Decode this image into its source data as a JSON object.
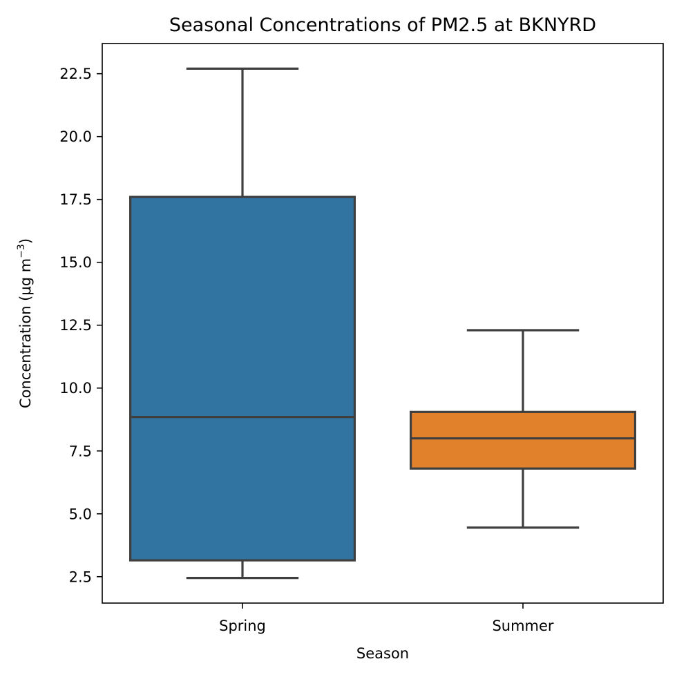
{
  "chart_data": {
    "type": "box",
    "title": "Seasonal Concentrations of PM2.5 at BKNYRD",
    "xlabel": "Season",
    "ylabel": "Concentration (μg m",
    "ylabel_sup": "−3",
    "ylabel_close": ")",
    "ylim": [
      1.45,
      23.7
    ],
    "yticks": [
      2.5,
      5.0,
      7.5,
      10.0,
      12.5,
      15.0,
      17.5,
      20.0,
      22.5
    ],
    "ytick_labels": [
      "2.5",
      "5.0",
      "7.5",
      "10.0",
      "12.5",
      "15.0",
      "17.5",
      "20.0",
      "22.5"
    ],
    "categories": [
      "Spring",
      "Summer"
    ],
    "boxes": [
      {
        "category": "Spring",
        "whisker_low": 2.45,
        "q1": 3.15,
        "median": 8.85,
        "q3": 17.6,
        "whisker_high": 22.7,
        "color": "#3274a1"
      },
      {
        "category": "Summer",
        "whisker_low": 4.45,
        "q1": 6.8,
        "median": 8.0,
        "q3": 9.05,
        "whisker_high": 12.3,
        "color": "#e1812c"
      }
    ],
    "line_color": "#3f3f3f",
    "grid": false
  }
}
